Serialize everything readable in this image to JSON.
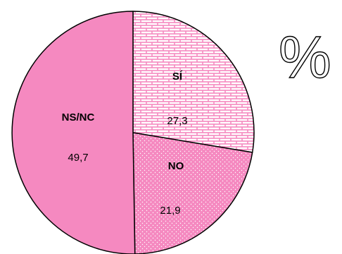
{
  "chart_data": {
    "type": "pie",
    "unit_symbol": "%",
    "slices": [
      {
        "label": "SÍ",
        "value": 27.3,
        "display": "27,3",
        "color": "#f589c0",
        "fill_pattern": "brick"
      },
      {
        "label": "NO",
        "value": 21.9,
        "display": "21,9",
        "color": "#f589c0",
        "fill_pattern": "dots"
      },
      {
        "label": "NS/NC",
        "value": 49.7,
        "display": "49,7",
        "color": "#f589c0",
        "fill_pattern": "solid"
      }
    ]
  }
}
